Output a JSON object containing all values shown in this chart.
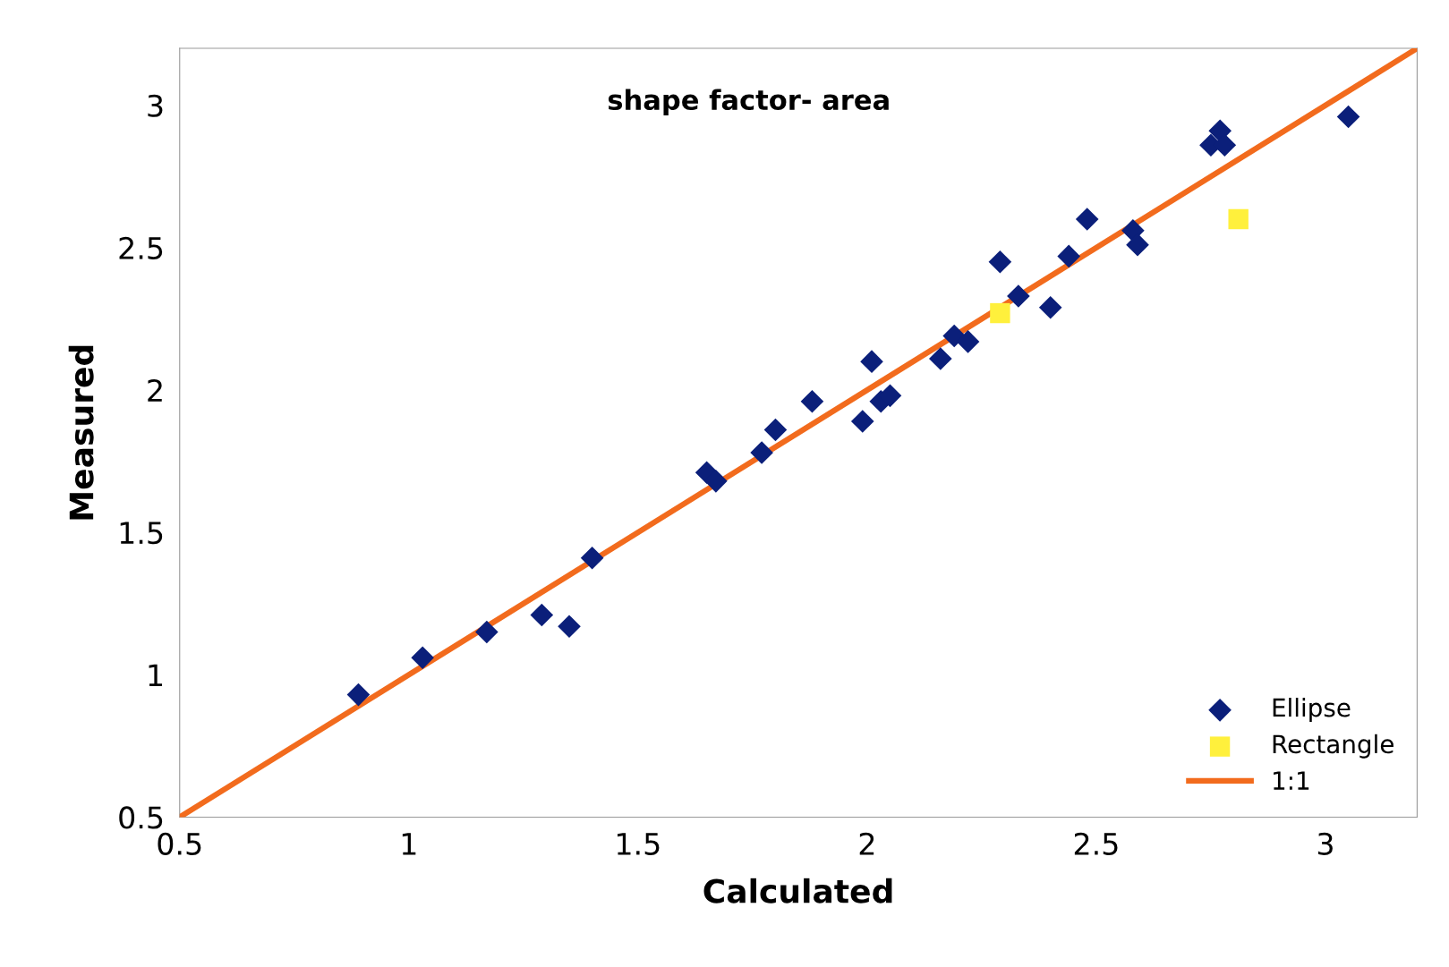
{
  "chart_data": {
    "type": "scatter",
    "title": "shape factor- area",
    "xlabel": "Calculated",
    "ylabel": "Measured",
    "xlim": [
      0.5,
      3.2
    ],
    "ylim": [
      0.5,
      3.2
    ],
    "xticks": [
      0.5,
      1,
      1.5,
      2,
      2.5,
      3
    ],
    "yticks": [
      0.5,
      1,
      1.5,
      2,
      2.5,
      3
    ],
    "grid": false,
    "legend": "bottom right",
    "series": [
      {
        "name": "Ellipse",
        "marker": "diamond",
        "color": "#0b1f7a",
        "x": [
          0.89,
          1.03,
          1.17,
          1.29,
          1.35,
          1.4,
          1.65,
          1.67,
          1.77,
          1.8,
          1.88,
          1.99,
          2.01,
          2.03,
          2.05,
          2.16,
          2.19,
          2.22,
          2.29,
          2.33,
          2.4,
          2.44,
          2.48,
          2.58,
          2.59,
          2.75,
          2.77,
          2.78,
          3.05
        ],
        "values": [
          0.93,
          1.06,
          1.15,
          1.21,
          1.17,
          1.41,
          1.71,
          1.68,
          1.78,
          1.86,
          1.96,
          1.89,
          2.1,
          1.96,
          1.98,
          2.11,
          2.19,
          2.17,
          2.45,
          2.33,
          2.29,
          2.47,
          2.6,
          2.56,
          2.51,
          2.86,
          2.91,
          2.86,
          2.96
        ]
      },
      {
        "name": "Rectangle",
        "marker": "square",
        "color": "#fff03c",
        "x": [
          2.29,
          2.81
        ],
        "values": [
          2.27,
          2.6
        ]
      },
      {
        "name": "1:1",
        "type": "line",
        "marker": "none",
        "line_style": "solid",
        "color": "#f26b1d",
        "x": [
          0.5,
          3.2
        ],
        "values": [
          0.5,
          3.2
        ]
      }
    ]
  }
}
